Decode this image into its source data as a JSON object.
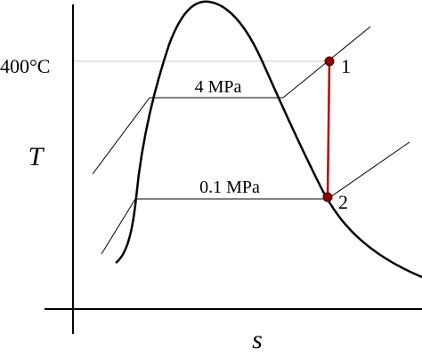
{
  "axes": {
    "y_label": "T",
    "x_label": "s",
    "temperature_label": "400°C"
  },
  "isobars": [
    {
      "label": "4 MPa"
    },
    {
      "label": "0.1 MPa"
    }
  ],
  "states": [
    {
      "label": "1"
    },
    {
      "label": "2"
    }
  ]
}
